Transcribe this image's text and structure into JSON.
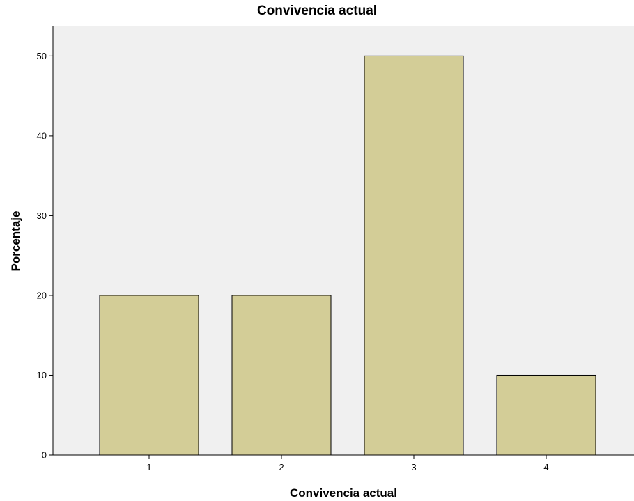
{
  "chart_data": {
    "type": "bar",
    "title": "Convivencia actual",
    "xlabel": "Convivencia actual",
    "ylabel": "Porcentaje",
    "categories": [
      "1",
      "2",
      "3",
      "4"
    ],
    "values": [
      20,
      20,
      50,
      10
    ],
    "ylim": [
      0,
      53.7
    ],
    "yticks": [
      0,
      10,
      20,
      30,
      40,
      50
    ],
    "grid": false,
    "legend": "none",
    "colors": {
      "bar_fill": "#d3cd97",
      "bar_stroke": "#000000",
      "plot_background": "#f0f0f0"
    }
  }
}
